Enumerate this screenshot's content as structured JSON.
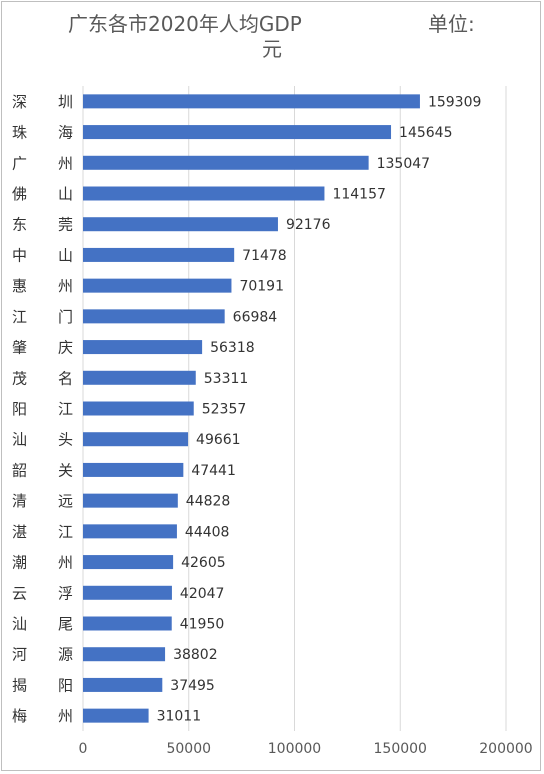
{
  "chart_data": {
    "type": "bar",
    "orientation": "horizontal",
    "title": "广东各市2020年人均GDP",
    "title_unit": "单位:",
    "title_unit_line2": "元",
    "categories": [
      [
        "深",
        "圳"
      ],
      [
        "珠",
        "海"
      ],
      [
        "广",
        "州"
      ],
      [
        "佛",
        "山"
      ],
      [
        "东",
        "莞"
      ],
      [
        "中",
        "山"
      ],
      [
        "惠",
        "州"
      ],
      [
        "江",
        "门"
      ],
      [
        "肇",
        "庆"
      ],
      [
        "茂",
        "名"
      ],
      [
        "阳",
        "江"
      ],
      [
        "汕",
        "头"
      ],
      [
        "韶",
        "关"
      ],
      [
        "清",
        "远"
      ],
      [
        "湛",
        "江"
      ],
      [
        "潮",
        "州"
      ],
      [
        "云",
        "浮"
      ],
      [
        "汕",
        "尾"
      ],
      [
        "河",
        "源"
      ],
      [
        "揭",
        "阳"
      ],
      [
        "梅",
        "州"
      ]
    ],
    "values": [
      159309,
      145645,
      135047,
      114157,
      92176,
      71478,
      70191,
      66984,
      56318,
      53311,
      52357,
      49661,
      47441,
      44828,
      44408,
      42605,
      42047,
      41950,
      38802,
      37495,
      31011
    ],
    "xlim": [
      0,
      200000
    ],
    "xticks": [
      0,
      50000,
      100000,
      150000,
      200000
    ],
    "grid": true,
    "bar_color": "#4472c4"
  }
}
